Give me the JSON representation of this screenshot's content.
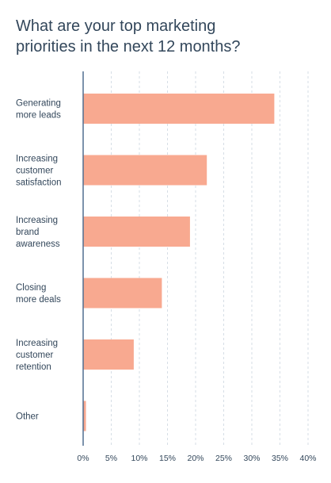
{
  "chart_data": {
    "type": "bar",
    "orientation": "horizontal",
    "title": "What are your top marketing\npriorities in the next 12 months?",
    "categories": [
      [
        "Generating",
        "more leads"
      ],
      [
        "Increasing",
        "customer",
        "satisfaction"
      ],
      [
        "Increasing",
        "brand",
        "awareness"
      ],
      [
        "Closing",
        "more deals"
      ],
      [
        "Increasing",
        "customer",
        "retention"
      ],
      [
        "Other"
      ]
    ],
    "values": [
      34,
      22,
      19,
      14,
      9,
      0.5
    ],
    "xlim": [
      0,
      40
    ],
    "xticks": [
      0,
      5,
      10,
      15,
      20,
      25,
      30,
      35,
      40
    ],
    "tick_labels": [
      "0%",
      "5%",
      "10%",
      "15%",
      "20%",
      "25%",
      "30%",
      "35%",
      "40%"
    ],
    "grid": true,
    "bar_color": "#f8a990",
    "axis_color": "#516f90",
    "grid_color": "#d6dee6",
    "text_color": "#33475b"
  }
}
